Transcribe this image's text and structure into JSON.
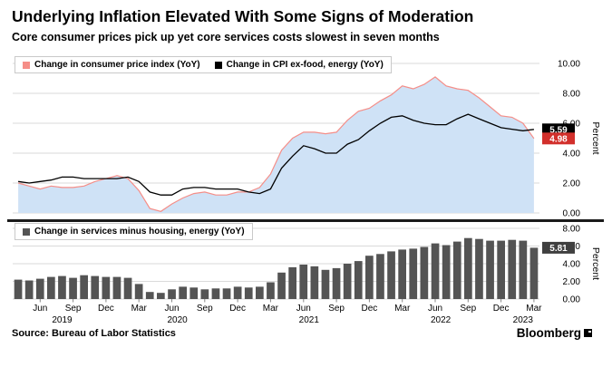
{
  "header": {
    "title": "Underlying Inflation Elevated With Some Signs of Moderation",
    "subtitle": "Core consumer prices pick up yet core services costs slowest in seven months"
  },
  "footer": {
    "source": "Source: Bureau of Labor Statistics",
    "brand": "Bloomberg"
  },
  "x_axis": {
    "months": [
      "Apr 2019",
      "May 2019",
      "Jun 2019",
      "Jul 2019",
      "Aug 2019",
      "Sep 2019",
      "Oct 2019",
      "Nov 2019",
      "Dec 2019",
      "Jan 2020",
      "Feb 2020",
      "Mar 2020",
      "Apr 2020",
      "May 2020",
      "Jun 2020",
      "Jul 2020",
      "Aug 2020",
      "Sep 2020",
      "Oct 2020",
      "Nov 2020",
      "Dec 2020",
      "Jan 2021",
      "Feb 2021",
      "Mar 2021",
      "Apr 2021",
      "May 2021",
      "Jun 2021",
      "Jul 2021",
      "Aug 2021",
      "Sep 2021",
      "Oct 2021",
      "Nov 2021",
      "Dec 2021",
      "Jan 2022",
      "Feb 2022",
      "Mar 2022",
      "Apr 2022",
      "May 2022",
      "Jun 2022",
      "Jul 2022",
      "Aug 2022",
      "Sep 2022",
      "Oct 2022",
      "Nov 2022",
      "Dec 2022",
      "Jan 2023",
      "Feb 2023",
      "Mar 2023"
    ],
    "ticks": [
      {
        "index": 2,
        "label": "Jun"
      },
      {
        "index": 5,
        "label": "Sep"
      },
      {
        "index": 8,
        "label": "Dec"
      },
      {
        "index": 11,
        "label": "Mar"
      },
      {
        "index": 14,
        "label": "Jun"
      },
      {
        "index": 17,
        "label": "Sep"
      },
      {
        "index": 20,
        "label": "Dec"
      },
      {
        "index": 23,
        "label": "Mar"
      },
      {
        "index": 26,
        "label": "Jun"
      },
      {
        "index": 29,
        "label": "Sep"
      },
      {
        "index": 32,
        "label": "Dec"
      },
      {
        "index": 35,
        "label": "Mar"
      },
      {
        "index": 38,
        "label": "Jun"
      },
      {
        "index": 41,
        "label": "Sep"
      },
      {
        "index": 44,
        "label": "Dec"
      },
      {
        "index": 47,
        "label": "Mar"
      }
    ],
    "years": [
      {
        "mid_index": 4,
        "label": "2019"
      },
      {
        "mid_index": 14.5,
        "label": "2020"
      },
      {
        "mid_index": 26.5,
        "label": "2021"
      },
      {
        "mid_index": 38.5,
        "label": "2022"
      },
      {
        "mid_index": 46,
        "label": "2023"
      }
    ]
  },
  "chart_data": [
    {
      "type": "area",
      "ylabel": "Percent",
      "ylim": [
        0,
        10
      ],
      "grid": true,
      "yticks": [
        {
          "value": 0,
          "label": "0.00"
        },
        {
          "value": 2,
          "label": "2.00"
        },
        {
          "value": 4,
          "label": "4.00"
        },
        {
          "value": 6,
          "label": "6.00"
        },
        {
          "value": 8,
          "label": "8.00"
        },
        {
          "value": 10,
          "label": "10.00"
        }
      ],
      "legend": [
        {
          "label": "Change in consumer price index (YoY)",
          "swatch": "#f58e88"
        },
        {
          "label": "Change in CPI ex-food, energy (YoY)",
          "swatch": "#000000"
        }
      ],
      "series": [
        {
          "name": "Change in consumer price index (YoY)",
          "style": "area",
          "fill": "#cfe2f6",
          "stroke": "#f58e88",
          "values": [
            2.0,
            1.8,
            1.6,
            1.8,
            1.7,
            1.7,
            1.8,
            2.1,
            2.3,
            2.5,
            2.3,
            1.5,
            0.3,
            0.1,
            0.6,
            1.0,
            1.3,
            1.4,
            1.2,
            1.2,
            1.4,
            1.4,
            1.7,
            2.6,
            4.2,
            5.0,
            5.4,
            5.4,
            5.3,
            5.4,
            6.2,
            6.8,
            7.0,
            7.5,
            7.9,
            8.5,
            8.3,
            8.6,
            9.1,
            8.5,
            8.3,
            8.2,
            7.7,
            7.1,
            6.5,
            6.4,
            6.0,
            4.98
          ]
        },
        {
          "name": "Change in CPI ex-food, energy (YoY)",
          "style": "line",
          "stroke": "#000000",
          "values": [
            2.1,
            2.0,
            2.1,
            2.2,
            2.4,
            2.4,
            2.3,
            2.3,
            2.3,
            2.3,
            2.4,
            2.1,
            1.4,
            1.2,
            1.2,
            1.6,
            1.7,
            1.7,
            1.6,
            1.6,
            1.6,
            1.4,
            1.3,
            1.6,
            3.0,
            3.8,
            4.5,
            4.3,
            4.0,
            4.0,
            4.6,
            4.9,
            5.5,
            6.0,
            6.4,
            6.5,
            6.2,
            6.0,
            5.9,
            5.9,
            6.3,
            6.6,
            6.3,
            6.0,
            5.7,
            5.6,
            5.5,
            5.59
          ]
        }
      ],
      "end_labels": [
        {
          "text": "5.59",
          "value": 5.59,
          "bg": "#000000"
        },
        {
          "text": "4.98",
          "value": 4.98,
          "bg": "#d2302c"
        }
      ]
    },
    {
      "type": "bar",
      "ylabel": "Percent",
      "ylim": [
        0,
        8
      ],
      "grid": true,
      "yticks": [
        {
          "value": 0,
          "label": "0.00"
        },
        {
          "value": 2,
          "label": "2.00"
        },
        {
          "value": 4,
          "label": "4.00"
        },
        {
          "value": 6,
          "label": "6.00"
        },
        {
          "value": 8,
          "label": "8.00"
        }
      ],
      "legend": [
        {
          "label": "Change in services minus housing, energy (YoY)",
          "swatch": "#545454"
        }
      ],
      "series": [
        {
          "name": "Change in services minus housing, energy (YoY)",
          "style": "bar",
          "fill": "#545454",
          "values": [
            2.2,
            2.1,
            2.3,
            2.5,
            2.6,
            2.4,
            2.7,
            2.6,
            2.5,
            2.5,
            2.4,
            1.7,
            0.8,
            0.7,
            1.1,
            1.4,
            1.3,
            1.1,
            1.2,
            1.2,
            1.4,
            1.3,
            1.4,
            1.9,
            3.0,
            3.6,
            3.9,
            3.7,
            3.3,
            3.5,
            4.0,
            4.3,
            4.9,
            5.1,
            5.4,
            5.6,
            5.7,
            5.9,
            6.3,
            6.1,
            6.5,
            6.9,
            6.8,
            6.6,
            6.6,
            6.7,
            6.6,
            5.81
          ]
        }
      ],
      "end_labels": [
        {
          "text": "5.81",
          "value": 5.81,
          "bg": "#404040"
        }
      ]
    }
  ]
}
